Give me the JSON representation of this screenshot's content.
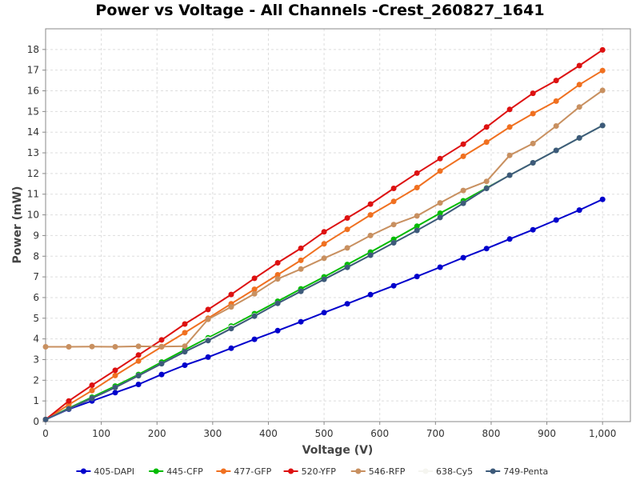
{
  "chart_data": {
    "type": "line",
    "title": "Power vs Voltage - All Channels -Crest_260827_1641",
    "xlabel": "Voltage (V)",
    "ylabel": "Power (mW)",
    "xlim": [
      0,
      1050
    ],
    "ylim": [
      0,
      19
    ],
    "x_ticks": [
      0,
      100,
      200,
      300,
      400,
      500,
      600,
      700,
      800,
      900,
      1000
    ],
    "x_tick_labels": [
      "0",
      "100",
      "200",
      "300",
      "400",
      "500",
      "600",
      "700",
      "800",
      "900",
      "1,000"
    ],
    "y_ticks": [
      0,
      1,
      2,
      3,
      4,
      5,
      6,
      7,
      8,
      9,
      10,
      11,
      12,
      13,
      14,
      15,
      16,
      17,
      18
    ],
    "y_tick_labels": [
      "0",
      "1",
      "2",
      "3",
      "4",
      "5",
      "6",
      "7",
      "8",
      "9",
      "10",
      "11",
      "12",
      "13",
      "14",
      "15",
      "16",
      "17",
      "18"
    ],
    "grid": true,
    "legend_position": "bottom",
    "x": [
      0,
      41.7,
      83.3,
      125,
      166.7,
      208.3,
      250,
      291.7,
      333.3,
      375,
      416.7,
      458.3,
      500,
      541.7,
      583.3,
      625,
      666.7,
      708.3,
      750,
      791.7,
      833.3,
      875,
      916.7,
      958.3,
      1000
    ],
    "series": [
      {
        "name": "405-DAPI",
        "color": "#0000cc",
        "values": [
          0.1,
          0.6,
          1.0,
          1.4,
          1.8,
          2.28,
          2.73,
          3.12,
          3.55,
          3.98,
          4.4,
          4.83,
          5.27,
          5.7,
          6.14,
          6.57,
          7.02,
          7.47,
          7.93,
          8.37,
          8.83,
          9.28,
          9.75,
          10.23,
          10.75
        ]
      },
      {
        "name": "445-CFP",
        "color": "#00bb00",
        "values": [
          0.1,
          0.65,
          1.18,
          1.72,
          2.28,
          2.88,
          3.47,
          4.05,
          4.62,
          5.22,
          5.82,
          6.42,
          7.0,
          7.6,
          8.2,
          8.82,
          9.45,
          10.08,
          10.68,
          11.3,
          11.92,
          12.52,
          13.12,
          13.72,
          14.32
        ]
      },
      {
        "name": "477-GFP",
        "color": "#f07020",
        "values": [
          0.1,
          0.82,
          1.5,
          2.23,
          2.93,
          3.62,
          4.3,
          5.0,
          5.7,
          6.4,
          7.1,
          7.8,
          8.6,
          9.3,
          10.0,
          10.65,
          11.32,
          12.12,
          12.83,
          13.52,
          14.25,
          14.9,
          15.5,
          16.3,
          16.98
        ]
      },
      {
        "name": "520-YFP",
        "color": "#dd1111",
        "values": [
          0.1,
          1.0,
          1.76,
          2.48,
          3.22,
          3.95,
          4.72,
          5.42,
          6.15,
          6.93,
          7.68,
          8.38,
          9.18,
          9.85,
          10.52,
          11.28,
          12.02,
          12.72,
          13.42,
          14.25,
          15.1,
          15.88,
          16.5,
          17.22,
          17.98
        ]
      },
      {
        "name": "546-RFP",
        "color": "#c89060",
        "values": [
          3.62,
          3.62,
          3.63,
          3.62,
          3.64,
          3.63,
          3.65,
          4.95,
          5.55,
          6.18,
          6.9,
          7.38,
          7.9,
          8.4,
          9.0,
          9.53,
          9.95,
          10.58,
          11.18,
          11.62,
          12.88,
          13.45,
          14.3,
          15.22,
          16.02
        ]
      },
      {
        "name": "638-Cy5",
        "color": "#f5f5f0",
        "values": [
          0.1,
          0.62,
          1.13,
          1.65,
          2.22,
          2.8,
          3.38,
          3.98,
          4.55,
          5.12,
          5.72,
          6.3,
          6.88,
          7.46,
          8.05,
          8.65,
          9.25,
          9.87,
          10.56,
          11.28,
          11.92,
          12.52,
          13.12,
          13.72,
          14.32
        ]
      },
      {
        "name": "749-Penta",
        "color": "#3d5a7a",
        "values": [
          0.1,
          0.62,
          1.13,
          1.65,
          2.22,
          2.8,
          3.38,
          3.92,
          4.5,
          5.1,
          5.72,
          6.3,
          6.88,
          7.46,
          8.05,
          8.65,
          9.25,
          9.87,
          10.56,
          11.28,
          11.92,
          12.52,
          13.12,
          13.72,
          14.32
        ]
      }
    ]
  }
}
